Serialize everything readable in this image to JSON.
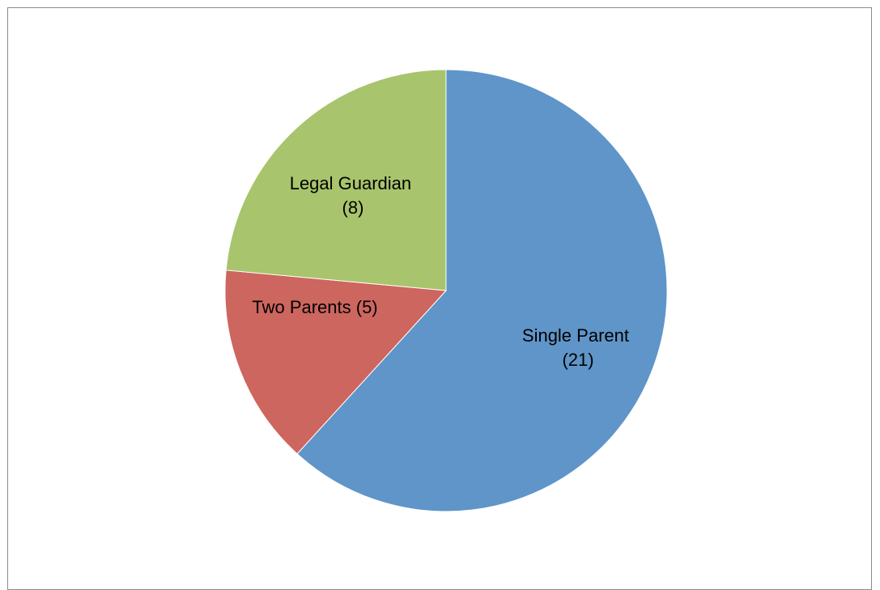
{
  "chart_data": {
    "type": "pie",
    "title": "",
    "start_angle_deg": 0,
    "direction": "clockwise",
    "slices": [
      {
        "label_lines": [
          "Single Parent",
          "(21)"
        ],
        "value": 21,
        "color": "#5f95c8"
      },
      {
        "label_lines": [
          "Two Parents (5)"
        ],
        "value": 5,
        "color": "#cd665e"
      },
      {
        "label_lines": [
          "Legal Guardian",
          "(8)"
        ],
        "value": 8,
        "color": "#a8c46c"
      }
    ],
    "legend": "none"
  }
}
